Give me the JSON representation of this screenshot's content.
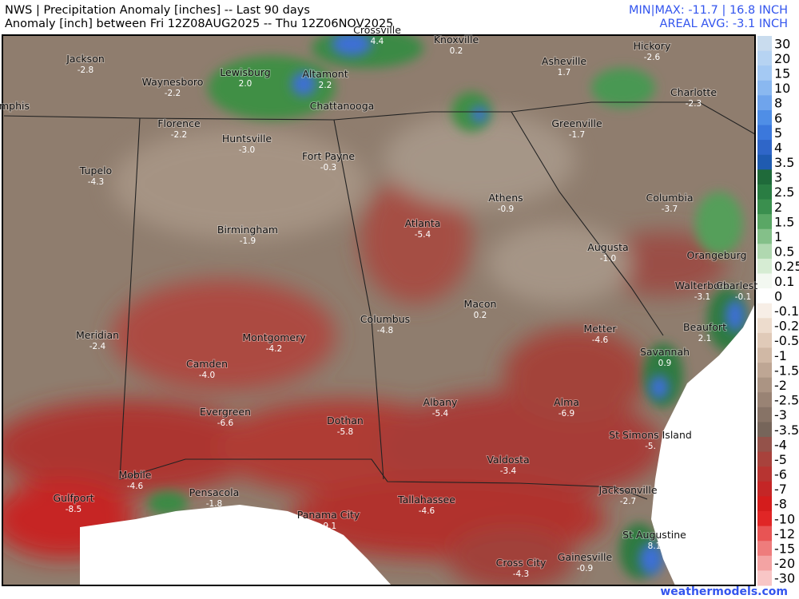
{
  "header": {
    "title": "NWS | Precipitation Anomaly [inches] -- Last 90 days",
    "subtitle": "Anomaly [inch] between Fri 12Z08AUG2025 -- Thu 12Z06NOV2025",
    "min_max": "MIN|MAX: -11.7 | 16.8 INCH",
    "areal_avg": "AREAL AVG: -3.1 INCH"
  },
  "footer": {
    "credit": "weathermodels.com"
  },
  "cities": [
    {
      "name": "Jackson",
      "value": "-2.8"
    },
    {
      "name": "Waynesboro",
      "value": "-2.2"
    },
    {
      "name": "Lewisburg",
      "value": "2.0"
    },
    {
      "name": "Altamont",
      "value": "2.2"
    },
    {
      "name": "Crossville",
      "value": "4.4"
    },
    {
      "name": "Knoxville",
      "value": "0.2"
    },
    {
      "name": "Asheville",
      "value": "1.7"
    },
    {
      "name": "Hickory",
      "value": "-2.6"
    },
    {
      "name": "Charlotte",
      "value": "-2.3"
    },
    {
      "name": "mphis"
    },
    {
      "name": "Chattanooga"
    },
    {
      "name": "Florence",
      "value": "-2.2"
    },
    {
      "name": "Huntsville",
      "value": "-3.0"
    },
    {
      "name": "Greenville",
      "value": "-1.7"
    },
    {
      "name": "Tupelo",
      "value": "-4.3"
    },
    {
      "name": "Fort Payne",
      "value": "-0.3"
    },
    {
      "name": "Athens",
      "value": "-0.9"
    },
    {
      "name": "Columbia",
      "value": "-3.7"
    },
    {
      "name": "Atlanta",
      "value": "-5.4"
    },
    {
      "name": "Birmingham",
      "value": "-1.9"
    },
    {
      "name": "Augusta",
      "value": "-1.0"
    },
    {
      "name": "Orangeburg"
    },
    {
      "name": "Walterboro",
      "value": "-3.1"
    },
    {
      "name": "Charleston",
      "value": "-0.1"
    },
    {
      "name": "Macon",
      "value": "0.2"
    },
    {
      "name": "Columbus",
      "value": "-4.8"
    },
    {
      "name": "Meridian",
      "value": "-2.4"
    },
    {
      "name": "Montgomery",
      "value": "-4.2"
    },
    {
      "name": "Metter",
      "value": "-4.6"
    },
    {
      "name": "Beaufort",
      "value": "2.1"
    },
    {
      "name": "Savannah",
      "value": "0.9"
    },
    {
      "name": "Camden",
      "value": "-4.0"
    },
    {
      "name": "Albany",
      "value": "-5.4"
    },
    {
      "name": "Alma",
      "value": "-6.9"
    },
    {
      "name": "Evergreen",
      "value": "-6.6"
    },
    {
      "name": "Dothan",
      "value": "-5.8"
    },
    {
      "name": "St Simons Island",
      "value": "-5."
    },
    {
      "name": "Valdosta",
      "value": "-3.4"
    },
    {
      "name": "Mobile",
      "value": "-4.6"
    },
    {
      "name": "Gulfport",
      "value": "-8.5"
    },
    {
      "name": "Pensacola",
      "value": "-1.8"
    },
    {
      "name": "Jacksonville",
      "value": "-2.7"
    },
    {
      "name": "Tallahassee",
      "value": "-4.6"
    },
    {
      "name": "Panama City",
      "value": "-9.1"
    },
    {
      "name": "St Augustine",
      "value": "8.1"
    },
    {
      "name": "Gainesville",
      "value": "-0.9"
    },
    {
      "name": "Cross City",
      "value": "-4.3"
    }
  ],
  "legend": [
    {
      "label": "30",
      "color": "#c9dcee"
    },
    {
      "label": "20",
      "color": "#b6d3f2"
    },
    {
      "label": "15",
      "color": "#a4c9f3"
    },
    {
      "label": "10",
      "color": "#8ab8f0"
    },
    {
      "label": "8",
      "color": "#6fa4ec"
    },
    {
      "label": "6",
      "color": "#4f8ee6"
    },
    {
      "label": "5",
      "color": "#3b78dc"
    },
    {
      "label": "4",
      "color": "#2f66c8"
    },
    {
      "label": "3.5",
      "color": "#1f5bb0"
    },
    {
      "label": "3",
      "color": "#1f6a3a"
    },
    {
      "label": "2.5",
      "color": "#2a7d43"
    },
    {
      "label": "2",
      "color": "#3a8f4e"
    },
    {
      "label": "1.5",
      "color": "#5aa765"
    },
    {
      "label": "1",
      "color": "#84c089"
    },
    {
      "label": "0.5",
      "color": "#b0d8b0"
    },
    {
      "label": "0.25",
      "color": "#d6ecd3"
    },
    {
      "label": "0.1",
      "color": "#f3f8f1"
    },
    {
      "label": "0",
      "color": "#ffffff"
    },
    {
      "label": "-0.1",
      "color": "#f7eee6"
    },
    {
      "label": "-0.25",
      "color": "#eddccd"
    },
    {
      "label": "-0.5",
      "color": "#e0cab8"
    },
    {
      "label": "-1",
      "color": "#d0b8a5"
    },
    {
      "label": "-1.5",
      "color": "#bea694"
    },
    {
      "label": "-2",
      "color": "#ab9483"
    },
    {
      "label": "-2.5",
      "color": "#998374"
    },
    {
      "label": "-3",
      "color": "#877366"
    },
    {
      "label": "-3.5",
      "color": "#76655a"
    },
    {
      "label": "-4",
      "color": "#94524a"
    },
    {
      "label": "-5",
      "color": "#a8423c"
    },
    {
      "label": "-6",
      "color": "#b73431"
    },
    {
      "label": "-7",
      "color": "#c42626"
    },
    {
      "label": "-8",
      "color": "#d41c1c"
    },
    {
      "label": "-10",
      "color": "#e02626"
    },
    {
      "label": "-12",
      "color": "#e85454"
    },
    {
      "label": "-15",
      "color": "#ee7c7c"
    },
    {
      "label": "-20",
      "color": "#f3a3a3"
    },
    {
      "label": "-30",
      "color": "#f8c6c6"
    }
  ]
}
